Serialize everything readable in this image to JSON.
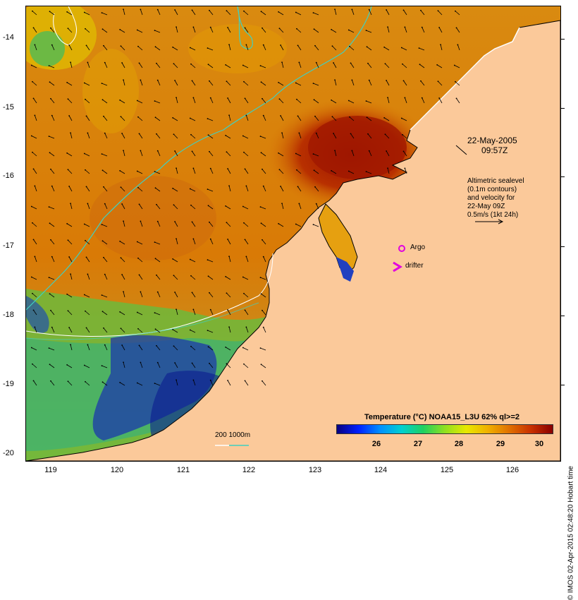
{
  "map": {
    "y_axis_labels": [
      "-14",
      "-15",
      "-16",
      "-17",
      "-18",
      "-19",
      "-20"
    ],
    "x_axis_labels": [
      "119",
      "120",
      "121",
      "122",
      "123",
      "124",
      "125",
      "126"
    ],
    "timestamp_date": "22-May-2005",
    "timestamp_time": "09:57Z",
    "altimetry_lines": [
      "Altimetric sealevel",
      "(0.1m contours)",
      "and velocity for",
      "22-May 09Z",
      "0.5m/s (1kt 24h)"
    ],
    "legend_argo": "Argo",
    "legend_drifter": "drifter",
    "bathymetry_label": "200  1000m",
    "colorbar_title": "Temperature (°C) NOAA15_L3U 62% ql>=2",
    "colorbar_ticks": [
      "26",
      "27",
      "28",
      "29",
      "30"
    ],
    "copyright": "© IMOS 02-Apr-2015 02:48:20 Hobart time",
    "colors": {
      "land": "#fbc99a",
      "warm_water": "#d97a06",
      "hot_water": "#a01800",
      "cool_water": "#30c060",
      "cold_water": "#1030c0",
      "contour": "#40d0c0",
      "argo": "#e000e0"
    },
    "icons": [
      "argo-circle-icon",
      "drifter-chevron-icon",
      "velocity-arrow-icon"
    ]
  }
}
